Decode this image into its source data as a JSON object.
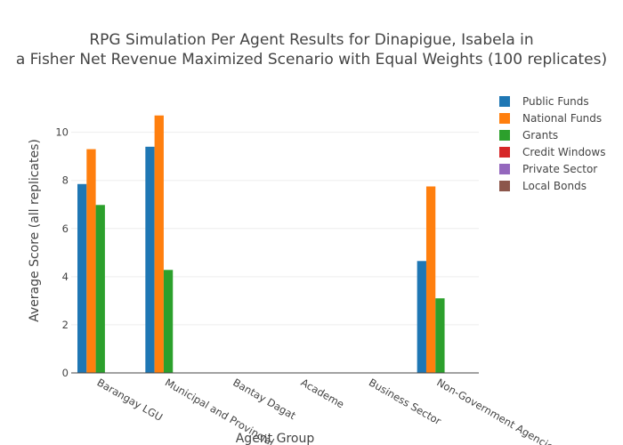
{
  "chart_data": {
    "type": "bar",
    "title_lines": [
      "RPG Simulation Per Agent Results for Dinapigue, Isabela in",
      "a Fisher Net Revenue Maximized Scenario with Equal Weights (100 replicates)"
    ],
    "xlabel": "Agent Group",
    "ylabel": "Average Score (all replicates)",
    "ylim": [
      0,
      11.8
    ],
    "yticks": [
      0,
      2,
      4,
      6,
      8,
      10
    ],
    "grid": true,
    "legend_position": "top-right",
    "categories": [
      "Barangay LGU",
      "Municipal and Provincial",
      "Bantay Dagat",
      "Academe",
      "Business Sector",
      "Non-Government Agencies"
    ],
    "series": [
      {
        "name": "Public Funds",
        "color": "#1f77b4",
        "values": [
          7.85,
          9.4,
          0,
          0,
          0,
          4.65
        ]
      },
      {
        "name": "National Funds",
        "color": "#ff7f0e",
        "values": [
          9.3,
          10.7,
          0,
          0,
          0,
          7.75
        ]
      },
      {
        "name": "Grants",
        "color": "#2ca02c",
        "values": [
          6.98,
          4.28,
          0,
          0,
          0,
          3.1
        ]
      },
      {
        "name": "Credit Windows",
        "color": "#d62728",
        "values": [
          0,
          0,
          0,
          0,
          0,
          0
        ]
      },
      {
        "name": "Private Sector",
        "color": "#9467bd",
        "values": [
          0,
          0,
          0,
          0,
          0,
          0
        ]
      },
      {
        "name": "Local Bonds",
        "color": "#8c564b",
        "values": [
          0,
          0,
          0,
          0,
          0,
          0
        ]
      }
    ]
  }
}
